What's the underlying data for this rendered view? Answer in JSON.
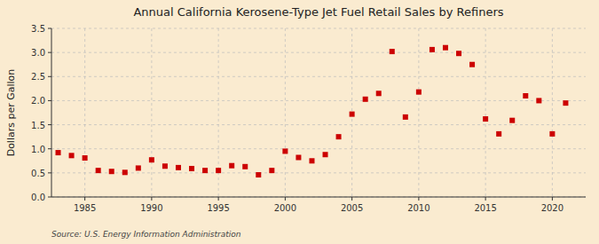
{
  "chart_data": {
    "type": "scatter",
    "title": "Annual California Kerosene-Type Jet Fuel Retail Sales by Refiners",
    "y_label": "Dollars per Gallon",
    "annotations": [
      "Source: U.S. Energy Information Administration"
    ],
    "x": [
      1983,
      1984,
      1985,
      1986,
      1987,
      1988,
      1989,
      1990,
      1991,
      1992,
      1993,
      1994,
      1995,
      1996,
      1997,
      1998,
      1999,
      2000,
      2001,
      2002,
      2003,
      2004,
      2005,
      2006,
      2007,
      2008,
      2009,
      2010,
      2011,
      2012,
      2013,
      2014,
      2015,
      2016,
      2017,
      2018,
      2019,
      2020,
      2021
    ],
    "values": [
      0.92,
      0.86,
      0.81,
      0.55,
      0.53,
      0.51,
      0.6,
      0.77,
      0.64,
      0.61,
      0.59,
      0.55,
      0.55,
      0.65,
      0.63,
      0.46,
      0.55,
      0.95,
      0.82,
      0.75,
      0.88,
      1.25,
      1.72,
      2.03,
      2.15,
      3.02,
      1.66,
      2.18,
      3.06,
      3.1,
      2.98,
      2.75,
      1.62,
      1.31,
      1.59,
      2.1,
      2.0,
      1.31,
      1.95
    ],
    "color": "#cc0000",
    "marker": "square",
    "grid": true,
    "xlim": [
      1982.5,
      2022.5
    ],
    "ylim": [
      0.0,
      3.5
    ],
    "xticks": [
      1985,
      1990,
      1995,
      2000,
      2005,
      2010,
      2015,
      2020
    ],
    "yticks": [
      {
        "value": 0.0,
        "label": "0.0"
      },
      0.5,
      {
        "value": 1.0,
        "label": "1.0"
      },
      1.5,
      {
        "value": 2.0,
        "label": "2.0"
      },
      2.5,
      {
        "value": 3.0,
        "label": "3.0"
      },
      3.5
    ]
  }
}
